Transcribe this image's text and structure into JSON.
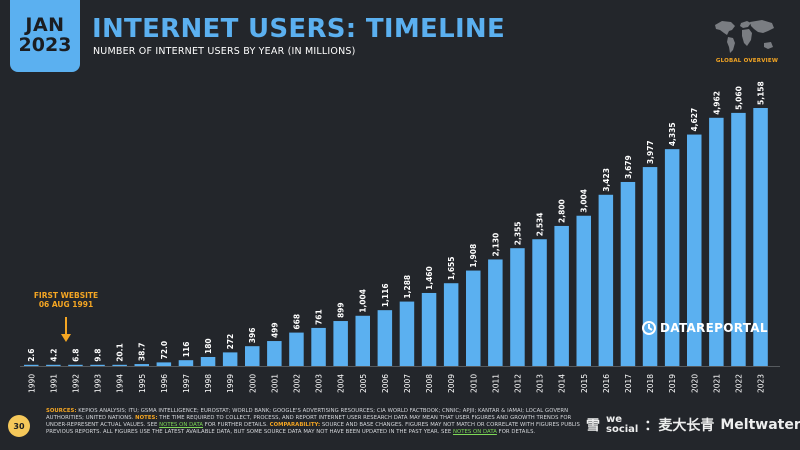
{
  "badge": {
    "month": "JAN",
    "year": "2023"
  },
  "header": {
    "title": "INTERNET USERS: TIMELINE",
    "subtitle": "NUMBER OF INTERNET USERS BY YEAR (IN MILLIONS)",
    "global_label": "GLOBAL OVERVIEW"
  },
  "annotation": {
    "line1": "FIRST WEBSITE",
    "line2": "06 AUG 1991"
  },
  "brand": {
    "name": "DATAREPORTAL"
  },
  "page_number": "30",
  "footer": {
    "sources_label": "SOURCES:",
    "sources_text": " KEPIOS ANALYSIS; ITU; GSMA INTELLIGENCE; EUROSTAT; WORLD BANK; GOOGLE'S ADVERTISING RESOURCES; CIA WORLD FACTBOOK; CNNIC; APJII; KANTAR & IAMAI; LOCAL GOVERN",
    "line2a": "AUTHORITIES; UNITED NATIONS. ",
    "notes_label": "NOTES:",
    "line2b": " THE TIME REQUIRED TO COLLECT, PROCESS, AND REPORT INTERNET USER RESEARCH DATA MAY MEAN THAT USER FIGURES AND GROWTH TRENDS FOR",
    "line3a": "UNDER-REPRESENT ACTUAL VALUES. SEE ",
    "notes_link": "NOTES ON DATA",
    "line3b": " FOR FURTHER DETAILS. ",
    "comparability_label": "COMPARABILITY:",
    "line3c": " SOURCE AND BASE CHANGES. FIGURES MAY NOT MATCH OR CORRELATE WITH FIGURES PUBLIS",
    "line4a": "PREVIOUS REPORTS. ALL FIGURES USE THE LATEST AVAILABLE DATA, BUT SOME SOURCE DATA MAY NOT HAVE BEEN UPDATED IN THE PAST YEAR. SEE ",
    "notes_link2": "NOTES ON DATA",
    "line4b": " FOR DETAILS."
  },
  "watermark": {
    "left": "雪",
    "mid_top": "we",
    "mid_bottom": "social",
    "right": "：麦大长青",
    "tail": "Meltwater"
  },
  "colors": {
    "bar": "#5bb0f0",
    "accent": "#f5a623",
    "background": "#23262b",
    "link": "#7ed957"
  },
  "chart_data": {
    "type": "bar",
    "title": "INTERNET USERS: TIMELINE",
    "ylabel": "",
    "xlabel": "",
    "ylim": [
      0,
      5500
    ],
    "grid": false,
    "categories": [
      "1990",
      "1991",
      "1992",
      "1993",
      "1994",
      "1995",
      "1996",
      "1997",
      "1998",
      "1999",
      "2000",
      "2001",
      "2002",
      "2003",
      "2004",
      "2005",
      "2006",
      "2007",
      "2008",
      "2009",
      "2010",
      "2011",
      "2012",
      "2013",
      "2014",
      "2015",
      "2016",
      "2017",
      "2018",
      "2019",
      "2020",
      "2021",
      "2022",
      "2023"
    ],
    "values": [
      2.6,
      4.2,
      6.8,
      9.8,
      20.1,
      38.7,
      72.0,
      116,
      180,
      272,
      396,
      499,
      668,
      761,
      899,
      1004,
      1116,
      1288,
      1460,
      1655,
      1908,
      2130,
      2355,
      2534,
      2800,
      3004,
      3423,
      3679,
      3977,
      4335,
      4627,
      4962,
      5060,
      5158
    ],
    "labels": [
      "2.6",
      "4.2",
      "6.8",
      "9.8",
      "20.1",
      "38.7",
      "72.0",
      "116",
      "180",
      "272",
      "396",
      "499",
      "668",
      "761",
      "899",
      "1,004",
      "1,116",
      "1,288",
      "1,460",
      "1,655",
      "1,908",
      "2,130",
      "2,355",
      "2,534",
      "2,800",
      "3,004",
      "3,423",
      "3,679",
      "3,977",
      "4,335",
      "4,627",
      "4,962",
      "5,060",
      "5,158"
    ]
  }
}
